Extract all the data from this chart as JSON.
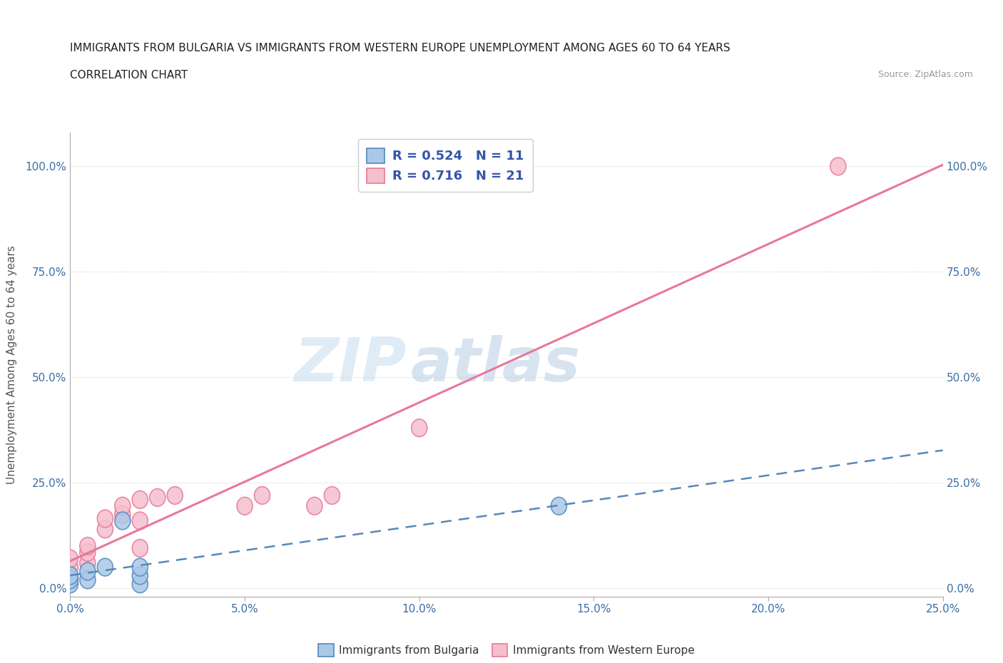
{
  "title_line1": "IMMIGRANTS FROM BULGARIA VS IMMIGRANTS FROM WESTERN EUROPE UNEMPLOYMENT AMONG AGES 60 TO 64 YEARS",
  "title_line2": "CORRELATION CHART",
  "source_text": "Source: ZipAtlas.com",
  "ylabel": "Unemployment Among Ages 60 to 64 years",
  "xlim": [
    0.0,
    0.25
  ],
  "ylim": [
    -0.02,
    1.08
  ],
  "xtick_labels": [
    "0.0%",
    "5.0%",
    "10.0%",
    "15.0%",
    "20.0%",
    "25.0%"
  ],
  "xtick_values": [
    0.0,
    0.05,
    0.1,
    0.15,
    0.2,
    0.25
  ],
  "ytick_labels": [
    "0.0%",
    "25.0%",
    "50.0%",
    "75.0%",
    "100.0%"
  ],
  "ytick_values": [
    0.0,
    0.25,
    0.5,
    0.75,
    1.0
  ],
  "bulgaria_color": "#aac8e8",
  "bulgaria_edge_color": "#5588bb",
  "western_europe_color": "#f5bfce",
  "western_europe_edge_color": "#e8789a",
  "bulgaria_line_color": "#5588bb",
  "western_europe_line_color": "#e8789a",
  "R_bulgaria": 0.524,
  "N_bulgaria": 11,
  "R_western": 0.716,
  "N_western": 21,
  "watermark_zip": "ZIP",
  "watermark_atlas": "atlas",
  "legend_text_color": "#3355aa",
  "grid_color": "#cccccc",
  "background_color": "#ffffff",
  "bulgaria_x": [
    0.0,
    0.0,
    0.0,
    0.005,
    0.005,
    0.01,
    0.015,
    0.02,
    0.02,
    0.02,
    0.14
  ],
  "bulgaria_y": [
    0.01,
    0.02,
    0.03,
    0.02,
    0.04,
    0.05,
    0.16,
    0.01,
    0.03,
    0.05,
    0.195
  ],
  "western_x": [
    0.0,
    0.0,
    0.0,
    0.005,
    0.005,
    0.005,
    0.01,
    0.01,
    0.015,
    0.015,
    0.02,
    0.02,
    0.02,
    0.025,
    0.03,
    0.05,
    0.055,
    0.07,
    0.075,
    0.1,
    0.22
  ],
  "western_y": [
    0.025,
    0.05,
    0.07,
    0.06,
    0.085,
    0.1,
    0.14,
    0.165,
    0.175,
    0.195,
    0.095,
    0.16,
    0.21,
    0.215,
    0.22,
    0.195,
    0.22,
    0.195,
    0.22,
    0.38,
    1.0
  ]
}
